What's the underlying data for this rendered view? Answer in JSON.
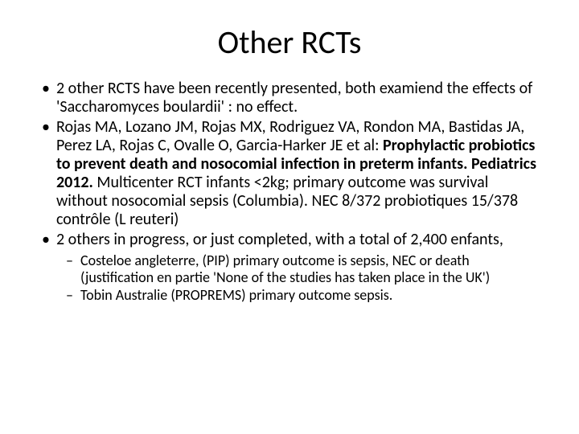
{
  "title": "Other RCTs",
  "bullets": [
    {
      "text": "2 other RCTS have been recently presented, both examiend the effects of 'Saccharomyces boulardii' : no effect."
    },
    {
      "leadin": "Rojas MA, Lozano JM, Rojas MX, Rodriguez VA, Rondon MA, Bastidas JA, Perez LA, Rojas C, Ovalle O, Garcia-Harker JE et al: ",
      "bold": "Prophylactic probiotics to prevent death and nosocomial infection in preterm infants. Pediatrics 2012. ",
      "tail": "Multicenter RCT infants <2kg; primary outcome was survival without nosocomial sepsis (Columbia). NEC 8/372 probiotiques 15/378 contrôle (L reuteri)"
    },
    {
      "text": "2 others in progress, or just completed, with a total of 2,400 enfants,",
      "sub": [
        "Costeloe angleterre, (PIP) primary outcome is sepsis, NEC or death (justification en partie 'None of the studies has taken place in the UK')",
        "Tobin Australie (PROPREMS) primary outcome sepsis."
      ]
    }
  ],
  "style": {
    "title_fontsize": 40,
    "body_fontsize": 20,
    "sub_fontsize": 18,
    "text_color": "#000000",
    "background_color": "#ffffff"
  }
}
